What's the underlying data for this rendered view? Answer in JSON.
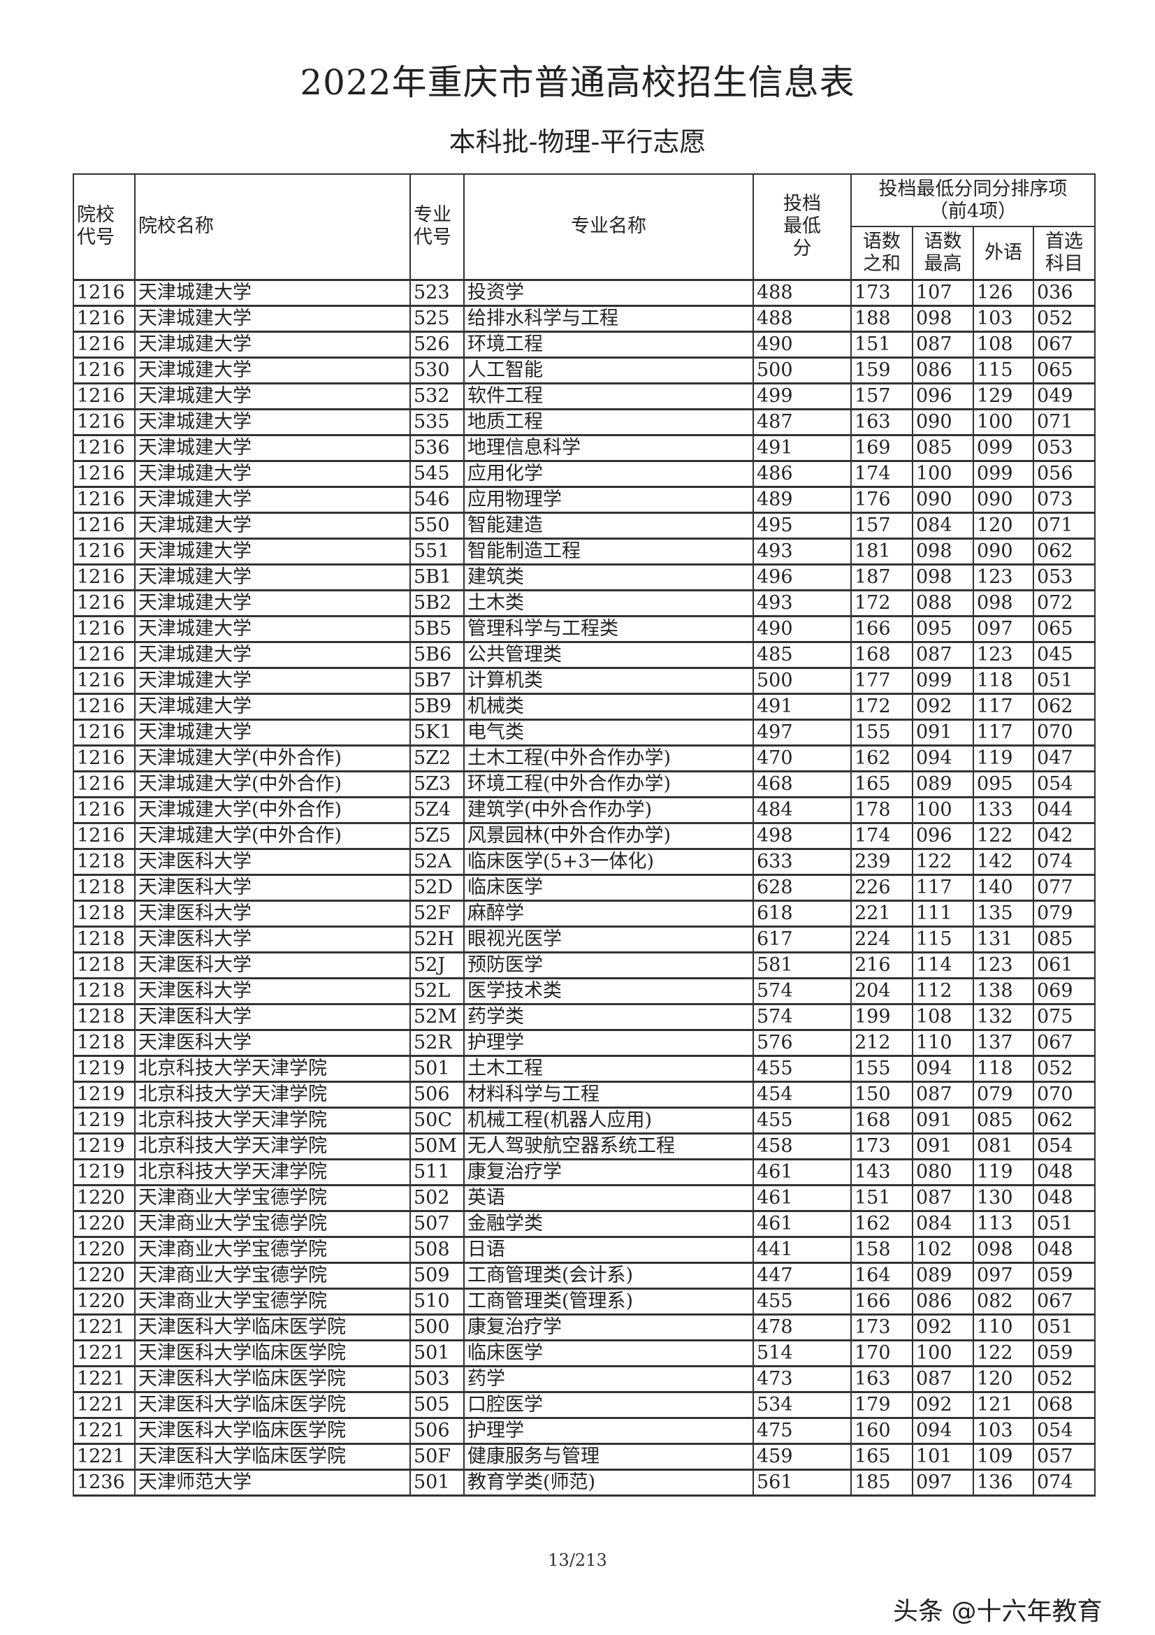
{
  "title": "2022年重庆市普通高校招生信息表",
  "subtitle": "本科批-物理-平行志愿",
  "table": {
    "headers": {
      "school_code": "院校代号",
      "school_name": "院校名称",
      "major_code": "专业代号",
      "major_name": "专业名称",
      "min_score": "投档最低分",
      "tiebreak_group": "投档最低分同分排序项（前4项）",
      "tiebreak": [
        "语数之和",
        "语数最高",
        "外语",
        "首选科目"
      ]
    },
    "rows": [
      [
        "1216",
        "天津城建大学",
        "523",
        "投资学",
        "488",
        "173",
        "107",
        "126",
        "036"
      ],
      [
        "1216",
        "天津城建大学",
        "525",
        "给排水科学与工程",
        "488",
        "188",
        "098",
        "103",
        "052"
      ],
      [
        "1216",
        "天津城建大学",
        "526",
        "环境工程",
        "490",
        "151",
        "087",
        "108",
        "067"
      ],
      [
        "1216",
        "天津城建大学",
        "530",
        "人工智能",
        "500",
        "159",
        "086",
        "115",
        "065"
      ],
      [
        "1216",
        "天津城建大学",
        "532",
        "软件工程",
        "499",
        "157",
        "096",
        "129",
        "049"
      ],
      [
        "1216",
        "天津城建大学",
        "535",
        "地质工程",
        "487",
        "163",
        "090",
        "100",
        "071"
      ],
      [
        "1216",
        "天津城建大学",
        "536",
        "地理信息科学",
        "491",
        "169",
        "085",
        "099",
        "053"
      ],
      [
        "1216",
        "天津城建大学",
        "545",
        "应用化学",
        "486",
        "174",
        "100",
        "099",
        "056"
      ],
      [
        "1216",
        "天津城建大学",
        "546",
        "应用物理学",
        "489",
        "176",
        "090",
        "090",
        "073"
      ],
      [
        "1216",
        "天津城建大学",
        "550",
        "智能建造",
        "495",
        "157",
        "084",
        "120",
        "071"
      ],
      [
        "1216",
        "天津城建大学",
        "551",
        "智能制造工程",
        "493",
        "181",
        "098",
        "090",
        "062"
      ],
      [
        "1216",
        "天津城建大学",
        "5B1",
        "建筑类",
        "496",
        "187",
        "098",
        "123",
        "053"
      ],
      [
        "1216",
        "天津城建大学",
        "5B2",
        "土木类",
        "493",
        "172",
        "088",
        "098",
        "072"
      ],
      [
        "1216",
        "天津城建大学",
        "5B5",
        "管理科学与工程类",
        "490",
        "166",
        "095",
        "097",
        "065"
      ],
      [
        "1216",
        "天津城建大学",
        "5B6",
        "公共管理类",
        "485",
        "168",
        "087",
        "123",
        "045"
      ],
      [
        "1216",
        "天津城建大学",
        "5B7",
        "计算机类",
        "500",
        "177",
        "099",
        "118",
        "051"
      ],
      [
        "1216",
        "天津城建大学",
        "5B9",
        "机械类",
        "491",
        "172",
        "092",
        "117",
        "062"
      ],
      [
        "1216",
        "天津城建大学",
        "5K1",
        "电气类",
        "497",
        "155",
        "091",
        "117",
        "070"
      ],
      [
        "1216",
        "天津城建大学(中外合作)",
        "5Z2",
        "土木工程(中外合作办学)",
        "470",
        "162",
        "094",
        "119",
        "047"
      ],
      [
        "1216",
        "天津城建大学(中外合作)",
        "5Z3",
        "环境工程(中外合作办学)",
        "468",
        "165",
        "089",
        "095",
        "054"
      ],
      [
        "1216",
        "天津城建大学(中外合作)",
        "5Z4",
        "建筑学(中外合作办学)",
        "484",
        "178",
        "100",
        "133",
        "044"
      ],
      [
        "1216",
        "天津城建大学(中外合作)",
        "5Z5",
        "风景园林(中外合作办学)",
        "498",
        "174",
        "096",
        "122",
        "042"
      ],
      [
        "1218",
        "天津医科大学",
        "52A",
        "临床医学(5+3一体化)",
        "633",
        "239",
        "122",
        "142",
        "074"
      ],
      [
        "1218",
        "天津医科大学",
        "52D",
        "临床医学",
        "628",
        "226",
        "117",
        "140",
        "077"
      ],
      [
        "1218",
        "天津医科大学",
        "52F",
        "麻醉学",
        "618",
        "221",
        "111",
        "135",
        "079"
      ],
      [
        "1218",
        "天津医科大学",
        "52H",
        "眼视光医学",
        "617",
        "224",
        "115",
        "131",
        "085"
      ],
      [
        "1218",
        "天津医科大学",
        "52J",
        "预防医学",
        "581",
        "216",
        "114",
        "123",
        "061"
      ],
      [
        "1218",
        "天津医科大学",
        "52L",
        "医学技术类",
        "574",
        "204",
        "112",
        "138",
        "069"
      ],
      [
        "1218",
        "天津医科大学",
        "52M",
        "药学类",
        "574",
        "199",
        "108",
        "132",
        "075"
      ],
      [
        "1218",
        "天津医科大学",
        "52R",
        "护理学",
        "576",
        "212",
        "110",
        "137",
        "067"
      ],
      [
        "1219",
        "北京科技大学天津学院",
        "501",
        "土木工程",
        "455",
        "155",
        "094",
        "118",
        "052"
      ],
      [
        "1219",
        "北京科技大学天津学院",
        "506",
        "材料科学与工程",
        "454",
        "150",
        "087",
        "079",
        "070"
      ],
      [
        "1219",
        "北京科技大学天津学院",
        "50C",
        "机械工程(机器人应用)",
        "455",
        "168",
        "091",
        "085",
        "062"
      ],
      [
        "1219",
        "北京科技大学天津学院",
        "50M",
        "无人驾驶航空器系统工程",
        "458",
        "173",
        "091",
        "081",
        "054"
      ],
      [
        "1219",
        "北京科技大学天津学院",
        "511",
        "康复治疗学",
        "461",
        "143",
        "080",
        "119",
        "048"
      ],
      [
        "1220",
        "天津商业大学宝德学院",
        "502",
        "英语",
        "461",
        "151",
        "087",
        "130",
        "048"
      ],
      [
        "1220",
        "天津商业大学宝德学院",
        "507",
        "金融学类",
        "461",
        "162",
        "084",
        "113",
        "051"
      ],
      [
        "1220",
        "天津商业大学宝德学院",
        "508",
        "日语",
        "441",
        "158",
        "102",
        "098",
        "048"
      ],
      [
        "1220",
        "天津商业大学宝德学院",
        "509",
        "工商管理类(会计系)",
        "447",
        "164",
        "089",
        "097",
        "059"
      ],
      [
        "1220",
        "天津商业大学宝德学院",
        "510",
        "工商管理类(管理系)",
        "455",
        "166",
        "086",
        "082",
        "067"
      ],
      [
        "1221",
        "天津医科大学临床医学院",
        "500",
        "康复治疗学",
        "478",
        "173",
        "092",
        "110",
        "051"
      ],
      [
        "1221",
        "天津医科大学临床医学院",
        "501",
        "临床医学",
        "514",
        "170",
        "100",
        "122",
        "059"
      ],
      [
        "1221",
        "天津医科大学临床医学院",
        "503",
        "药学",
        "473",
        "163",
        "087",
        "120",
        "052"
      ],
      [
        "1221",
        "天津医科大学临床医学院",
        "505",
        "口腔医学",
        "534",
        "179",
        "092",
        "121",
        "068"
      ],
      [
        "1221",
        "天津医科大学临床医学院",
        "506",
        "护理学",
        "475",
        "160",
        "094",
        "103",
        "054"
      ],
      [
        "1221",
        "天津医科大学临床医学院",
        "50F",
        "健康服务与管理",
        "459",
        "165",
        "101",
        "109",
        "057"
      ],
      [
        "1236",
        "天津师范大学",
        "501",
        "教育学类(师范)",
        "561",
        "185",
        "097",
        "136",
        "074"
      ]
    ]
  },
  "page_number": "13/213",
  "watermark": "头条 @十六年教育"
}
